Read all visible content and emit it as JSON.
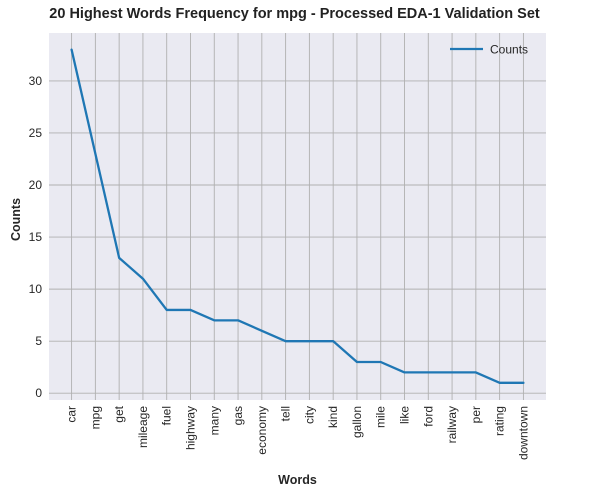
{
  "chart_data": {
    "type": "line",
    "title": "20 Highest Words Frequency for mpg - Processed EDA-1 Validation Set",
    "xlabel": "Words",
    "ylabel": "Counts",
    "categories": [
      "car",
      "mpg",
      "get",
      "mileage",
      "fuel",
      "highway",
      "many",
      "gas",
      "economy",
      "tell",
      "city",
      "kind",
      "gallon",
      "mile",
      "like",
      "ford",
      "railway",
      "per",
      "rating",
      "downtown"
    ],
    "series": [
      {
        "name": "Counts",
        "values": [
          33,
          23,
          13,
          11,
          8,
          8,
          7,
          7,
          6,
          5,
          5,
          5,
          3,
          3,
          2,
          2,
          2,
          2,
          1,
          1
        ],
        "color": "#1f77b4"
      }
    ],
    "ylim": [
      -0.65,
      34.6
    ],
    "yticks": [
      0,
      5,
      10,
      15,
      20,
      25,
      30
    ],
    "grid": true,
    "legend_position": "top-right",
    "background": "#eaeaf2",
    "grid_color": "#b0b0b0"
  }
}
